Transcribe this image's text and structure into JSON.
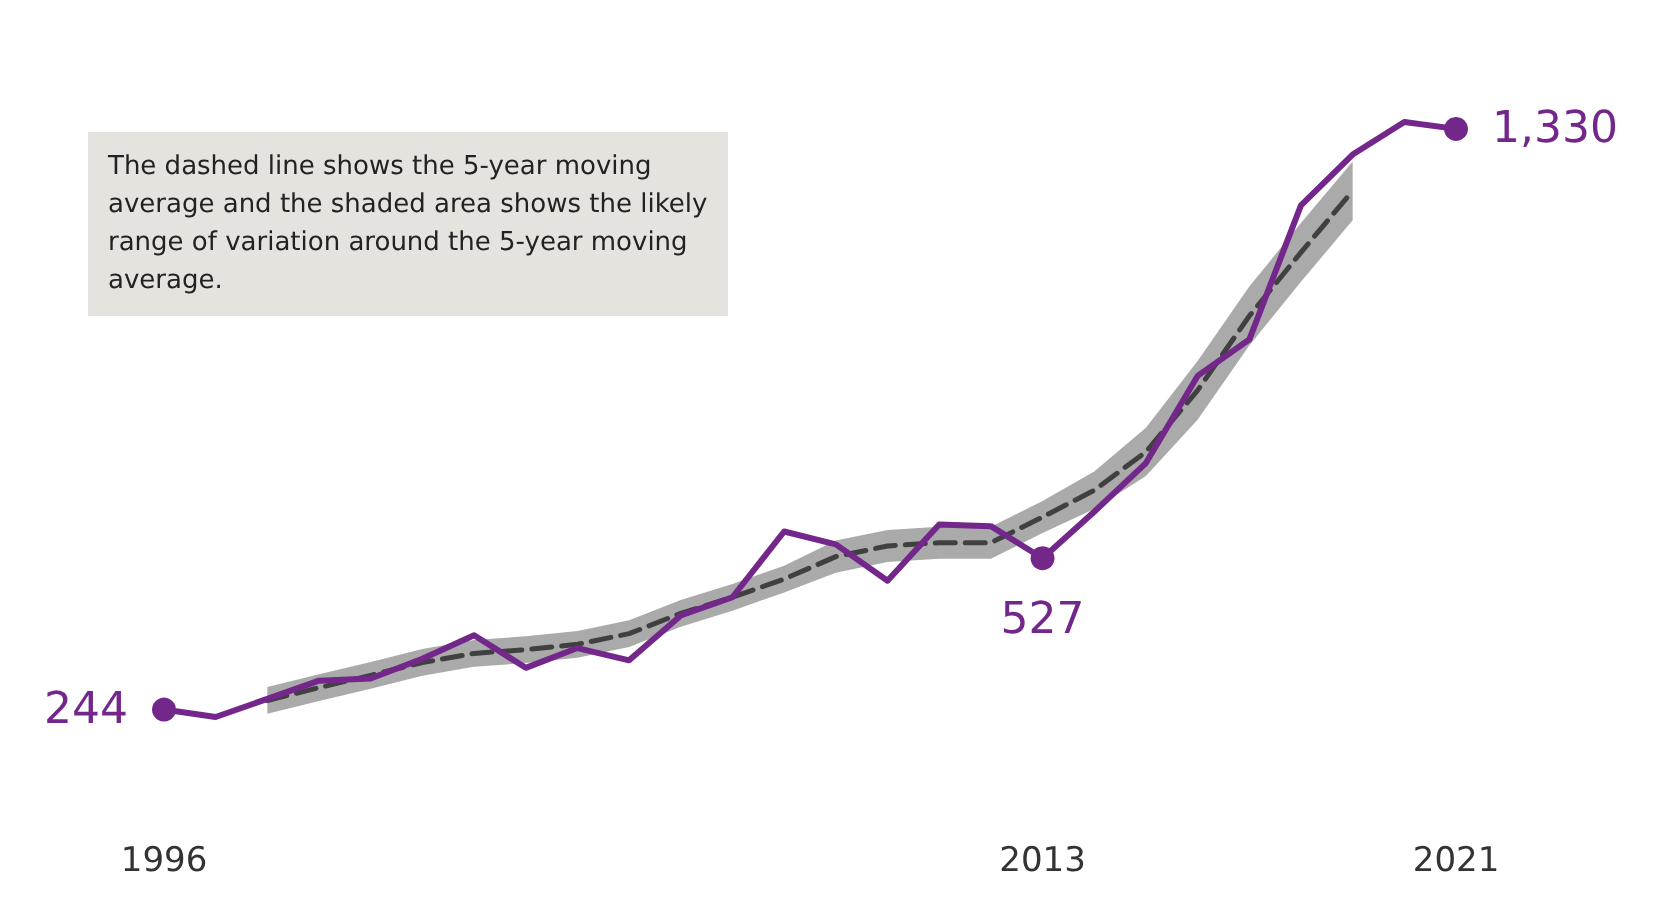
{
  "chart_data": {
    "type": "line",
    "x": [
      1996,
      1997,
      1998,
      1999,
      2000,
      2001,
      2002,
      2003,
      2004,
      2005,
      2006,
      2007,
      2008,
      2009,
      2010,
      2011,
      2012,
      2013,
      2014,
      2015,
      2016,
      2017,
      2018,
      2019,
      2020,
      2021
    ],
    "xlim": [
      1996,
      2021
    ],
    "xticks": [
      1996,
      2013,
      2021
    ],
    "series": [
      {
        "line_style": "dashed",
        "color": "#404040",
        "x": [
          1998,
          1999,
          2000,
          2001,
          2002,
          2003,
          2004,
          2005,
          2006,
          2007,
          2008,
          2009,
          2010,
          2011,
          2012,
          2013,
          2014,
          2015,
          2016,
          2017,
          2018,
          2019
        ],
        "values": [
          261,
          285,
          308,
          332,
          349,
          356,
          366,
          386,
          424,
          454,
          488,
          530,
          550,
          556,
          556,
          604,
          654,
          726,
          841,
          980,
          1099,
          1214
        ],
        "lower": [
          236,
          260,
          283,
          307,
          324,
          331,
          341,
          361,
          399,
          429,
          463,
          500,
          520,
          526,
          526,
          574,
          619,
          681,
          786,
          925,
          1044,
          1159
        ],
        "upper": [
          286,
          310,
          333,
          357,
          374,
          381,
          391,
          411,
          449,
          479,
          513,
          560,
          580,
          586,
          586,
          634,
          689,
          771,
          896,
          1035,
          1154,
          1269
        ]
      },
      {
        "line_style": "solid",
        "color": "#74278a",
        "values": [
          244,
          230,
          264,
          298,
          302,
          339,
          383,
          322,
          359,
          336,
          420,
          454,
          577,
          553,
          485,
          590,
          587,
          527,
          614,
          705,
          868,
          936,
          1187,
          1282,
          1343,
          1330
        ],
        "value_labels": [
          "244",
          null,
          null,
          null,
          null,
          null,
          null,
          null,
          null,
          null,
          null,
          null,
          null,
          null,
          null,
          null,
          null,
          "527",
          null,
          null,
          null,
          null,
          null,
          null,
          null,
          "1,330"
        ]
      }
    ],
    "annotations": [
      "The dashed line shows the 5-year moving average and the shaded area shows the likely range of variation around the 5-year moving average."
    ],
    "grid": false
  }
}
